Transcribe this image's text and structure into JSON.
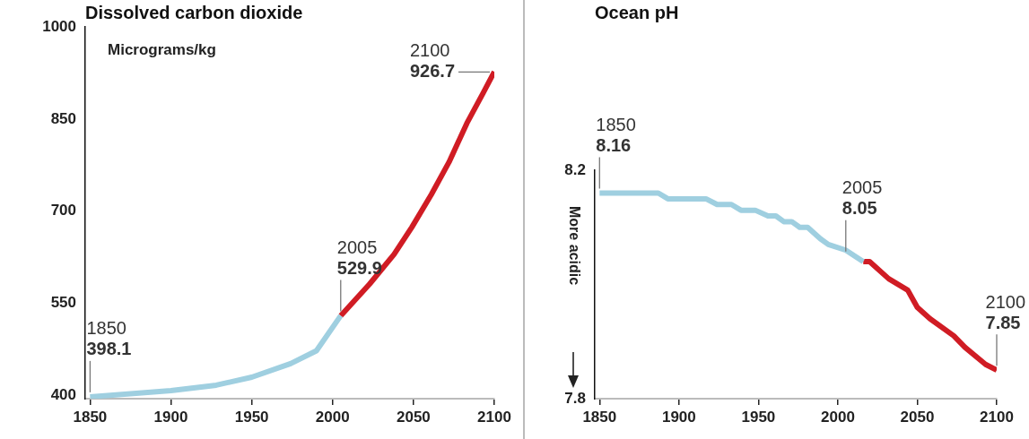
{
  "chart_data": [
    {
      "type": "line",
      "title": "Dissolved carbon dioxide",
      "ylabel": "Micrograms/kg",
      "xlim": [
        1847,
        2100
      ],
      "xticks": [
        1850,
        1900,
        1950,
        2000,
        2050,
        2100
      ],
      "ylim": [
        395,
        1000
      ],
      "yticks": [
        400,
        550,
        700,
        850,
        1000
      ],
      "grid": false,
      "legend": false,
      "marker": "none",
      "line_style": "solid",
      "series": [
        {
          "color": "#9fcfe0",
          "x": [
            1850,
            1900,
            1928,
            1950,
            1974,
            1990,
            2005
          ],
          "values": [
            398,
            408,
            417,
            430,
            452,
            473,
            530
          ]
        },
        {
          "color": "#d01c24",
          "x": [
            2005,
            2023,
            2038,
            2049,
            2061,
            2072,
            2083,
            2093,
            2100
          ],
          "values": [
            530,
            582,
            630,
            674,
            727,
            780,
            843,
            892,
            927
          ]
        }
      ],
      "annotations": [
        {
          "text": "1850\n398.1",
          "x": 1850,
          "y": 398.1
        },
        {
          "text": "2005\n529.9",
          "x": 2005,
          "y": 529.9
        },
        {
          "text": "2100\n926.7",
          "x": 2100,
          "y": 926.7
        }
      ]
    },
    {
      "type": "line",
      "title": "Ocean pH",
      "xlim": [
        1847,
        2100
      ],
      "xticks": [
        1850,
        1900,
        1950,
        2000,
        2050,
        2100
      ],
      "ylim": [
        7.8,
        8.2
      ],
      "yticks": [
        7.8,
        8.2
      ],
      "grid": false,
      "legend": false,
      "marker": "none",
      "line_style": "solid",
      "series": [
        {
          "color": "#9fcfe0",
          "x": [
            1850,
            1887,
            1893,
            1917,
            1924,
            1933,
            1939,
            1948,
            1956,
            1961,
            1966,
            1971,
            1976,
            1981,
            1989,
            1994,
            2005,
            2016
          ],
          "values": [
            8.16,
            8.16,
            8.15,
            8.15,
            8.14,
            8.14,
            8.13,
            8.13,
            8.12,
            8.12,
            8.11,
            8.11,
            8.1,
            8.1,
            8.08,
            8.07,
            8.06,
            8.04
          ]
        },
        {
          "color": "#d01c24",
          "x": [
            2016,
            2020,
            2032,
            2044,
            2050,
            2058,
            2073,
            2080,
            2093,
            2100
          ],
          "values": [
            8.04,
            8.04,
            8.01,
            7.99,
            7.96,
            7.94,
            7.91,
            7.89,
            7.86,
            7.85
          ]
        }
      ],
      "annotations": [
        {
          "text": "1850\n8.16",
          "x": 1850,
          "y": 8.16
        },
        {
          "text": "2005\n8.05",
          "x": 2005,
          "y": 8.05
        },
        {
          "text": "2100\n7.85",
          "x": 2100,
          "y": 7.85
        },
        "More acidic"
      ]
    }
  ]
}
